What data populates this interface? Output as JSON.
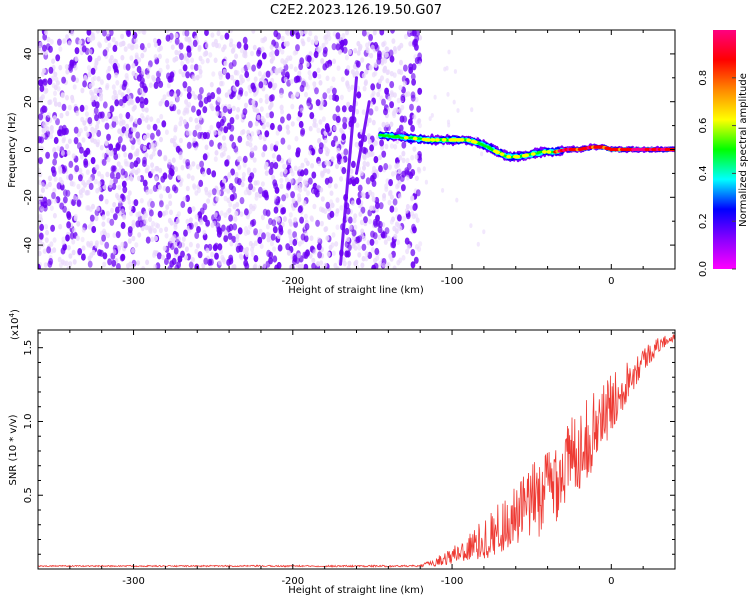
{
  "title": "C2E2.2023.126.19.50.G07",
  "colors": {
    "snr_line": "#ee3a33",
    "scatter_low": "#e9d8fb",
    "scatter_high": "#6a00f2"
  },
  "chart_data": [
    {
      "type": "heatmap",
      "xlabel": "Height of straight line (km)",
      "ylabel": "Frequency (Hz)",
      "xlim": [
        -360,
        40
      ],
      "ylim": [
        -50,
        50
      ],
      "xticks": [
        {
          "value": -300,
          "label": "-300"
        },
        {
          "value": -200,
          "label": "-200"
        },
        {
          "value": -100,
          "label": "-100"
        },
        {
          "value": 0,
          "label": "0"
        }
      ],
      "yticks": [
        {
          "value": -40,
          "label": "-40"
        },
        {
          "value": -20,
          "label": "-20"
        },
        {
          "value": 0,
          "label": "0"
        },
        {
          "value": 20,
          "label": "20"
        },
        {
          "value": 40,
          "label": "40"
        }
      ],
      "noise_region_x": [
        -360,
        -120
      ],
      "streaks": [
        {
          "x": [
            -170,
            -160
          ],
          "y": [
            -48,
            30
          ]
        },
        {
          "x": [
            -160,
            -152
          ],
          "y": [
            -10,
            20
          ]
        }
      ],
      "signal_track": {
        "x": [
          -145,
          -130,
          -115,
          -100,
          -90,
          -80,
          -72,
          -65,
          -58,
          -50,
          -42,
          -35,
          -28,
          -20,
          -12,
          -5,
          0,
          10,
          20,
          30,
          40
        ],
        "y": [
          6,
          5,
          4,
          4,
          4,
          2,
          -1,
          -3,
          -3,
          -2,
          -1,
          -1,
          0,
          0,
          1,
          1,
          0,
          0,
          0,
          0,
          0
        ]
      },
      "colorbar": {
        "label": "Normalized spectral amplitude",
        "range": [
          0,
          1
        ],
        "ticks": [
          {
            "value": 0.0,
            "label": "0.0"
          },
          {
            "value": 0.2,
            "label": "0.2"
          },
          {
            "value": 0.4,
            "label": "0.4"
          },
          {
            "value": 0.6,
            "label": "0.6"
          },
          {
            "value": 0.8,
            "label": "0.8"
          }
        ],
        "colors": [
          "#ff00ff",
          "#8800ff",
          "#0000ff",
          "#00ffff",
          "#00ff00",
          "#ffff00",
          "#ff8800",
          "#ff0000",
          "#ff0080"
        ]
      }
    },
    {
      "type": "line",
      "xlabel": "Height of straight line (km)",
      "ylabel": "SNR (10 * v/v)",
      "scale_label": "(x10",
      "scale_exponent": "4",
      "scale_close": ")",
      "xlim": [
        -360,
        40
      ],
      "ylim": [
        0,
        1.62
      ],
      "xticks": [
        {
          "value": -300,
          "label": "-300"
        },
        {
          "value": -200,
          "label": "-200"
        },
        {
          "value": -100,
          "label": "-100"
        },
        {
          "value": 0,
          "label": "0"
        }
      ],
      "yticks": [
        {
          "value": 0.5,
          "label": "0.5"
        },
        {
          "value": 1.0,
          "label": "1.0"
        },
        {
          "value": 1.5,
          "label": "1.5"
        }
      ],
      "series": [
        {
          "x": [
            -360,
            -120,
            -110,
            -100,
            -90,
            -80,
            -70,
            -60,
            -50,
            -40,
            -30,
            -20,
            -10,
            0,
            10,
            20,
            30,
            40
          ],
          "y": [
            0.02,
            0.02,
            0.05,
            0.09,
            0.14,
            0.2,
            0.28,
            0.35,
            0.45,
            0.55,
            0.68,
            0.82,
            0.95,
            1.12,
            1.28,
            1.42,
            1.52,
            1.58
          ],
          "y_spread": [
            0.004,
            0.006,
            0.03,
            0.06,
            0.1,
            0.14,
            0.18,
            0.22,
            0.26,
            0.3,
            0.3,
            0.28,
            0.26,
            0.2,
            0.14,
            0.09,
            0.05,
            0.03
          ]
        }
      ]
    }
  ]
}
